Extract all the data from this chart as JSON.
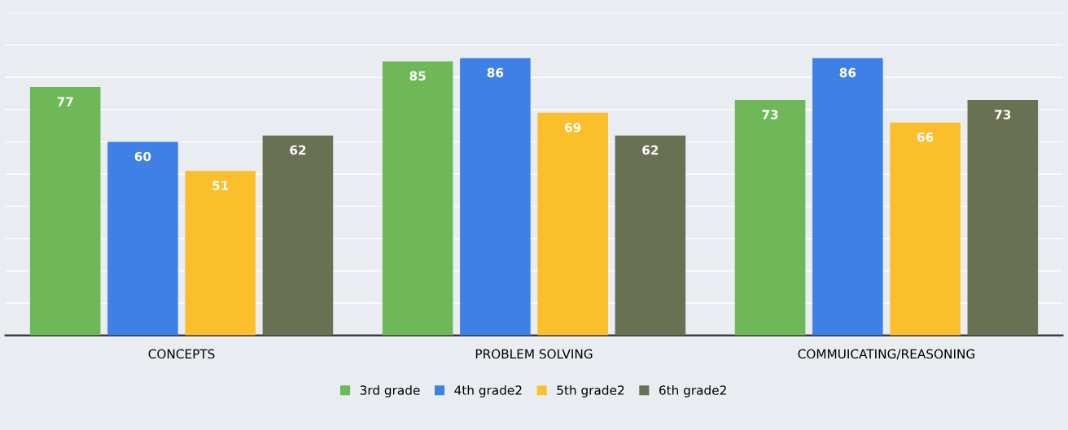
{
  "chart_data": {
    "type": "bar",
    "categories": [
      "CONCEPTS",
      "PROBLEM SOLVING",
      "COMMUICATING/REASONING"
    ],
    "series": [
      {
        "name": "3rd grade",
        "color": "#6fb85a",
        "values": [
          77,
          85,
          73
        ]
      },
      {
        "name": "4th grade2",
        "color": "#3f80e6",
        "values": [
          60,
          86,
          86
        ]
      },
      {
        "name": "5th grade2",
        "color": "#fcbf2c",
        "values": [
          51,
          69,
          66
        ]
      },
      {
        "name": "6th grade2",
        "color": "#6a7153",
        "values": [
          62,
          62,
          73
        ]
      }
    ],
    "ylim": [
      0,
      100
    ],
    "yticks": [
      {
        "value": 0,
        "label": null
      },
      {
        "value": 10,
        "label": null
      },
      {
        "value": 20,
        "label": null
      },
      {
        "value": 30,
        "label": null
      },
      {
        "value": 40,
        "label": null
      },
      {
        "value": 50,
        "label": null
      },
      {
        "value": 60,
        "label": null
      },
      {
        "value": 70,
        "label": null
      },
      {
        "value": 80,
        "label": null
      },
      {
        "value": 90,
        "label": null
      },
      {
        "value": 100,
        "label": null
      }
    ],
    "tick_labels": "x",
    "grid": "y",
    "legend": "bottom",
    "data_labels": true
  }
}
